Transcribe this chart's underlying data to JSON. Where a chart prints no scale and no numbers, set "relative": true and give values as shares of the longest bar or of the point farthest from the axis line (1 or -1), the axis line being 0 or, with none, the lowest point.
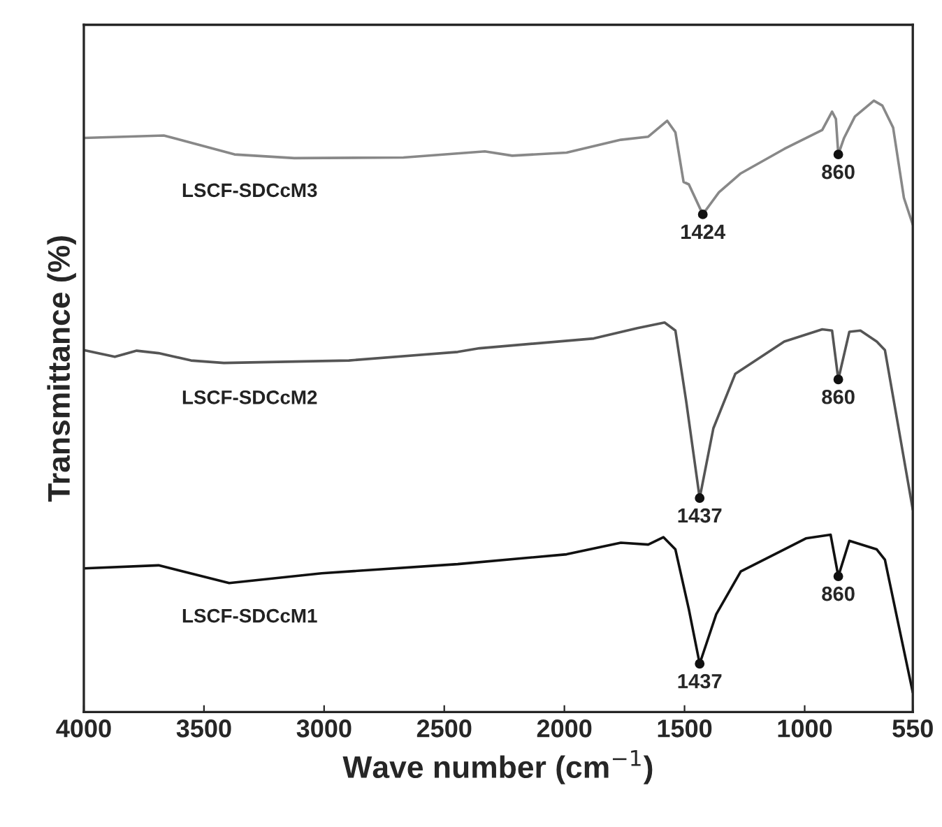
{
  "chart_data": {
    "type": "line",
    "relative": true,
    "xlabel": "Wave number (cm$^{−1}$)",
    "ylabel": "Transmittance (%)",
    "xlim": [
      4000,
      550
    ],
    "xticks": [
      4000,
      3500,
      3000,
      2500,
      2000,
      1500,
      1000,
      550
    ],
    "tick_labels": "x",
    "grid": false,
    "legend": false,
    "marker": "none",
    "line_style": "solid",
    "series": [
      {
        "name": "LSCF-SDCcM3",
        "color": "#888888",
        "x": [
          4000,
          3667,
          3373,
          3124,
          2670,
          2331,
          2217,
          1991,
          1765,
          1651,
          1572,
          1538,
          1504,
          1482,
          1424,
          1357,
          1266,
          1085,
          927,
          886,
          870,
          860,
          836,
          791,
          712,
          677,
          632,
          587,
          550
        ],
        "values": [
          0.939,
          0.943,
          0.912,
          0.906,
          0.907,
          0.917,
          0.91,
          0.915,
          0.936,
          0.941,
          0.967,
          0.948,
          0.867,
          0.863,
          0.814,
          0.85,
          0.881,
          0.921,
          0.952,
          0.982,
          0.97,
          0.912,
          0.939,
          0.974,
          1.0,
          0.992,
          0.956,
          0.841,
          0.797
        ]
      },
      {
        "name": "LSCF-SDCcM2",
        "color": "#555555",
        "x": [
          4000,
          3871,
          3780,
          3689,
          3554,
          3417,
          2897,
          2444,
          2353,
          1878,
          1696,
          1583,
          1538,
          1493,
          1437,
          1380,
          1289,
          1085,
          927,
          886,
          860,
          814,
          768,
          700,
          666,
          609,
          550
        ],
        "values": [
          0.592,
          0.581,
          0.591,
          0.587,
          0.575,
          0.571,
          0.575,
          0.589,
          0.595,
          0.611,
          0.628,
          0.637,
          0.624,
          0.508,
          0.35,
          0.464,
          0.553,
          0.606,
          0.626,
          0.624,
          0.544,
          0.622,
          0.624,
          0.606,
          0.592,
          0.464,
          0.331
        ]
      },
      {
        "name": "LSCF-SDCcM1",
        "color": "#111111",
        "x": [
          4000,
          3689,
          3395,
          3010,
          2444,
          1991,
          1765,
          1651,
          1588,
          1538,
          1482,
          1437,
          1368,
          1266,
          1085,
          995,
          892,
          860,
          814,
          700,
          666,
          609,
          550
        ],
        "values": [
          0.235,
          0.24,
          0.211,
          0.227,
          0.242,
          0.258,
          0.277,
          0.274,
          0.286,
          0.266,
          0.168,
          0.079,
          0.16,
          0.23,
          0.266,
          0.284,
          0.29,
          0.222,
          0.28,
          0.266,
          0.249,
          0.142,
          0.032
        ]
      }
    ],
    "annotations": [
      {
        "text": "1424",
        "x": 1424,
        "y": 0.814
      },
      {
        "text": "860",
        "x": 860,
        "y": 0.912
      },
      {
        "text": "1437",
        "x": 1437,
        "y": 0.35
      },
      {
        "text": "860",
        "x": 860,
        "y": 0.544
      },
      {
        "text": "1437",
        "x": 1437,
        "y": 0.079
      },
      {
        "text": "860",
        "x": 860,
        "y": 0.222
      }
    ]
  }
}
